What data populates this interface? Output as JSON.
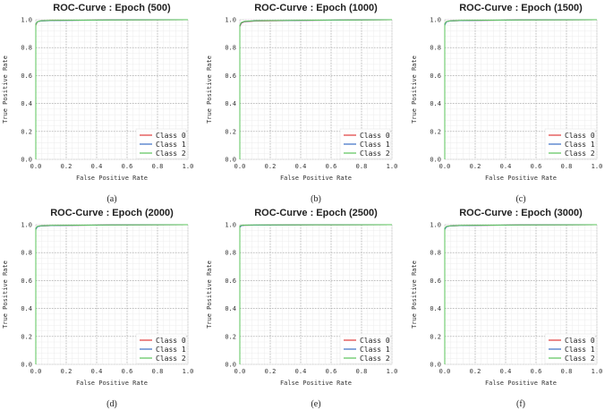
{
  "chart_data": [
    {
      "type": "line",
      "title": "ROC-Curve : Epoch (500)",
      "caption": "(a)",
      "xlabel": "False Positive Rate",
      "ylabel": "True Positive Rate",
      "xlim": [
        0,
        1
      ],
      "ylim": [
        0,
        1
      ],
      "xticks": [
        "0.0",
        "0.2",
        "0.4",
        "0.6",
        "0.8",
        "1.0"
      ],
      "yticks": [
        "0.0",
        "0.2",
        "0.4",
        "0.6",
        "0.8",
        "1.0"
      ],
      "grid": true,
      "legend_position": "bottom-right",
      "series": [
        {
          "name": "Class 0",
          "color": "#e03b3b",
          "x": [
            0,
            0,
            0.01,
            0.03,
            0.1,
            0.5,
            1.0
          ],
          "y": [
            0,
            0.96,
            0.985,
            0.99,
            0.995,
            0.998,
            1.0
          ]
        },
        {
          "name": "Class 1",
          "color": "#3b6fc4",
          "x": [
            0,
            0,
            0.01,
            0.03,
            0.1,
            0.5,
            1.0
          ],
          "y": [
            0,
            0.965,
            0.985,
            0.99,
            0.994,
            0.998,
            1.0
          ]
        },
        {
          "name": "Class 2",
          "color": "#5bc45b",
          "x": [
            0,
            0,
            0.01,
            0.03,
            0.1,
            0.5,
            1.0
          ],
          "y": [
            0,
            0.97,
            0.985,
            0.992,
            0.995,
            0.998,
            1.0
          ]
        }
      ]
    },
    {
      "type": "line",
      "title": "ROC-Curve : Epoch (1000)",
      "caption": "(b)",
      "xlabel": "False Positive Rate",
      "ylabel": "True Positive Rate",
      "xlim": [
        0,
        1
      ],
      "ylim": [
        0,
        1
      ],
      "xticks": [
        "0.0",
        "0.2",
        "0.4",
        "0.6",
        "0.8",
        "1.0"
      ],
      "yticks": [
        "0.0",
        "0.2",
        "0.4",
        "0.6",
        "0.8",
        "1.0"
      ],
      "grid": true,
      "legend_position": "bottom-right",
      "series": [
        {
          "name": "Class 0",
          "color": "#e03b3b",
          "x": [
            0,
            0,
            0.01,
            0.03,
            0.1,
            0.5,
            1.0
          ],
          "y": [
            0,
            0.95,
            0.975,
            0.985,
            0.99,
            0.996,
            1.0
          ]
        },
        {
          "name": "Class 1",
          "color": "#3b6fc4",
          "x": [
            0,
            0,
            0.01,
            0.03,
            0.1,
            0.5,
            1.0
          ],
          "y": [
            0,
            0.955,
            0.978,
            0.986,
            0.992,
            0.996,
            1.0
          ]
        },
        {
          "name": "Class 2",
          "color": "#5bc45b",
          "x": [
            0,
            0,
            0.01,
            0.03,
            0.1,
            0.5,
            1.0
          ],
          "y": [
            0,
            0.96,
            0.98,
            0.988,
            0.993,
            0.997,
            1.0
          ]
        }
      ]
    },
    {
      "type": "line",
      "title": "ROC-Curve : Epoch (1500)",
      "caption": "(c)",
      "xlabel": "False Positive Rate",
      "ylabel": "True Positive Rate",
      "xlim": [
        0,
        1
      ],
      "ylim": [
        0,
        1
      ],
      "xticks": [
        "0.0",
        "0.2",
        "0.4",
        "0.6",
        "0.8",
        "1.0"
      ],
      "yticks": [
        "0.0",
        "0.2",
        "0.4",
        "0.6",
        "0.8",
        "1.0"
      ],
      "grid": true,
      "legend_position": "bottom-right",
      "series": [
        {
          "name": "Class 0",
          "color": "#e03b3b",
          "x": [
            0,
            0,
            0.01,
            0.03,
            0.1,
            0.5,
            1.0
          ],
          "y": [
            0,
            0.965,
            0.985,
            0.99,
            0.994,
            0.998,
            1.0
          ]
        },
        {
          "name": "Class 1",
          "color": "#3b6fc4",
          "x": [
            0,
            0,
            0.01,
            0.03,
            0.1,
            0.5,
            1.0
          ],
          "y": [
            0,
            0.96,
            0.984,
            0.99,
            0.994,
            0.998,
            1.0
          ]
        },
        {
          "name": "Class 2",
          "color": "#5bc45b",
          "x": [
            0,
            0,
            0.01,
            0.03,
            0.1,
            0.5,
            1.0
          ],
          "y": [
            0,
            0.97,
            0.986,
            0.991,
            0.995,
            0.998,
            1.0
          ]
        }
      ]
    },
    {
      "type": "line",
      "title": "ROC-Curve : Epoch (2000)",
      "caption": "(d)",
      "xlabel": "False Positive Rate",
      "ylabel": "True Positive Rate",
      "xlim": [
        0,
        1
      ],
      "ylim": [
        0,
        1
      ],
      "xticks": [
        "0.0",
        "0.2",
        "0.4",
        "0.6",
        "0.8",
        "1.0"
      ],
      "yticks": [
        "0.0",
        "0.2",
        "0.4",
        "0.6",
        "0.8",
        "1.0"
      ],
      "grid": true,
      "legend_position": "bottom-right",
      "series": [
        {
          "name": "Class 0",
          "color": "#e03b3b",
          "x": [
            0,
            0,
            0.01,
            0.03,
            0.1,
            0.5,
            1.0
          ],
          "y": [
            0,
            0.97,
            0.986,
            0.99,
            0.994,
            0.998,
            1.0
          ]
        },
        {
          "name": "Class 1",
          "color": "#3b6fc4",
          "x": [
            0,
            0,
            0.01,
            0.03,
            0.1,
            0.5,
            1.0
          ],
          "y": [
            0,
            0.965,
            0.985,
            0.99,
            0.994,
            0.998,
            1.0
          ]
        },
        {
          "name": "Class 2",
          "color": "#5bc45b",
          "x": [
            0,
            0,
            0.01,
            0.03,
            0.1,
            0.5,
            1.0
          ],
          "y": [
            0,
            0.975,
            0.988,
            0.992,
            0.995,
            0.998,
            1.0
          ]
        }
      ]
    },
    {
      "type": "line",
      "title": "ROC-Curve : Epoch (2500)",
      "caption": "(e)",
      "xlabel": "False Positive Rate",
      "ylabel": "True Positive Rate",
      "xlim": [
        0,
        1
      ],
      "ylim": [
        0,
        1
      ],
      "xticks": [
        "0.0",
        "0.2",
        "0.4",
        "0.6",
        "0.8",
        "1.0"
      ],
      "yticks": [
        "0.0",
        "0.2",
        "0.4",
        "0.6",
        "0.8",
        "1.0"
      ],
      "grid": true,
      "legend_position": "bottom-right",
      "series": [
        {
          "name": "Class 0",
          "color": "#e03b3b",
          "x": [
            0,
            0,
            0.01,
            0.03,
            0.1,
            0.5,
            1.0
          ],
          "y": [
            0,
            0.985,
            0.994,
            0.996,
            0.997,
            0.999,
            1.0
          ]
        },
        {
          "name": "Class 1",
          "color": "#3b6fc4",
          "x": [
            0,
            0,
            0.01,
            0.03,
            0.1,
            0.5,
            1.0
          ],
          "y": [
            0,
            0.98,
            0.993,
            0.996,
            0.997,
            0.999,
            1.0
          ]
        },
        {
          "name": "Class 2",
          "color": "#5bc45b",
          "x": [
            0,
            0,
            0.01,
            0.03,
            0.1,
            0.5,
            1.0
          ],
          "y": [
            0,
            0.99,
            0.995,
            0.997,
            0.998,
            0.999,
            1.0
          ]
        }
      ]
    },
    {
      "type": "line",
      "title": "ROC-Curve : Epoch (3000)",
      "caption": "(f)",
      "xlabel": "False Positive Rate",
      "ylabel": "True Positive Rate",
      "xlim": [
        0,
        1
      ],
      "ylim": [
        0,
        1
      ],
      "xticks": [
        "0.0",
        "0.2",
        "0.4",
        "0.6",
        "0.8",
        "1.0"
      ],
      "yticks": [
        "0.0",
        "0.2",
        "0.4",
        "0.6",
        "0.8",
        "1.0"
      ],
      "grid": true,
      "legend_position": "bottom-right",
      "series": [
        {
          "name": "Class 0",
          "color": "#e03b3b",
          "x": [
            0,
            0,
            0.01,
            0.03,
            0.1,
            0.5,
            1.0
          ],
          "y": [
            0,
            0.97,
            0.985,
            0.99,
            0.994,
            0.998,
            1.0
          ]
        },
        {
          "name": "Class 1",
          "color": "#3b6fc4",
          "x": [
            0,
            0,
            0.01,
            0.03,
            0.1,
            0.5,
            1.0
          ],
          "y": [
            0,
            0.965,
            0.984,
            0.99,
            0.994,
            0.998,
            1.0
          ]
        },
        {
          "name": "Class 2",
          "color": "#5bc45b",
          "x": [
            0,
            0,
            0.01,
            0.03,
            0.1,
            0.5,
            1.0
          ],
          "y": [
            0,
            0.975,
            0.987,
            0.991,
            0.995,
            0.998,
            1.0
          ]
        }
      ]
    }
  ]
}
